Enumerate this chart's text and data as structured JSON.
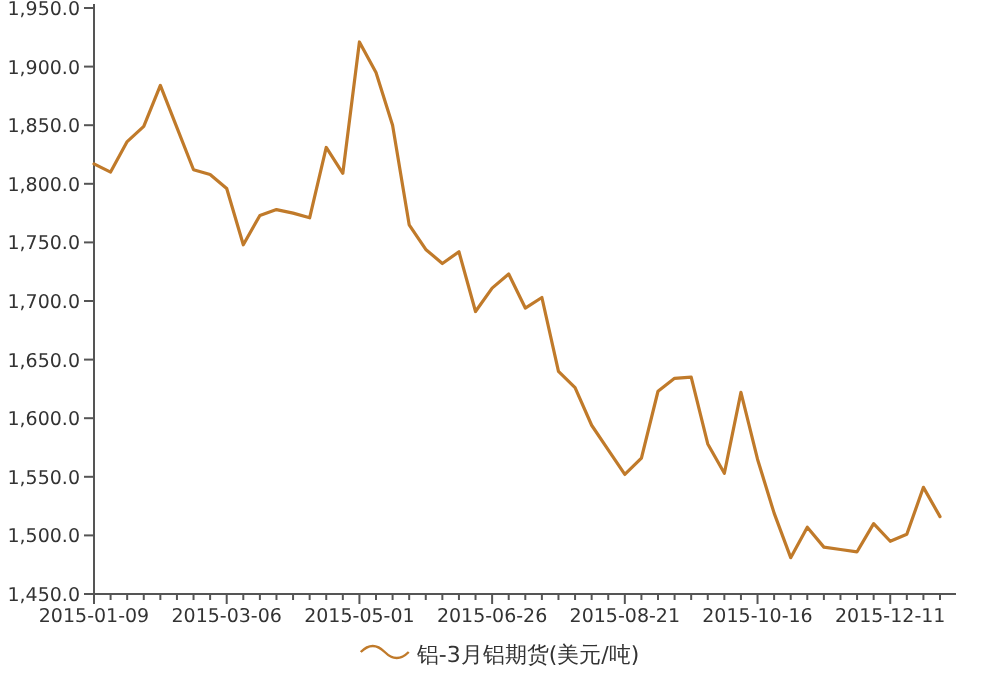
{
  "chart_data": {
    "type": "line",
    "categories": [
      "2015-01-09",
      null,
      null,
      null,
      null,
      null,
      null,
      null,
      "2015-03-06",
      null,
      null,
      null,
      null,
      null,
      null,
      null,
      "2015-05-01",
      null,
      null,
      null,
      null,
      null,
      null,
      null,
      "2015-06-26",
      null,
      null,
      null,
      null,
      null,
      null,
      null,
      "2015-08-21",
      null,
      null,
      null,
      null,
      null,
      null,
      null,
      "2015-10-16",
      null,
      null,
      null,
      null,
      null,
      null,
      null,
      "2015-12-11",
      null,
      null,
      null
    ],
    "series": [
      {
        "name": "铝-3月铝期货(美元/吨)",
        "color": "#c07a2a",
        "values": [
          1817,
          1810,
          1836,
          1849,
          1884,
          1848,
          1812,
          1808,
          1796,
          1748,
          1773,
          1778,
          1775,
          1771,
          1831,
          1809,
          1921,
          1895,
          1850,
          1765,
          1744,
          1732,
          1742,
          1691,
          1711,
          1723,
          1694,
          1703,
          1640,
          1626,
          1594,
          1573,
          1552,
          1566,
          1623,
          1634,
          1635,
          1578,
          1553,
          1622,
          1565,
          1519,
          1481,
          1507,
          1490,
          1488,
          1486,
          1510,
          1495,
          1501,
          1541,
          1516
        ]
      }
    ],
    "ylim": [
      1450,
      1950
    ],
    "yticks": [
      {
        "value": 1450,
        "label": "1,450.0"
      },
      {
        "value": 1500,
        "label": "1,500.0"
      },
      {
        "value": 1550,
        "label": "1,550.0"
      },
      {
        "value": 1600,
        "label": "1,600.0"
      },
      {
        "value": 1650,
        "label": "1,650.0"
      },
      {
        "value": 1700,
        "label": "1,700.0"
      },
      {
        "value": 1750,
        "label": "1,750.0"
      },
      {
        "value": 1800,
        "label": "1,800.0"
      },
      {
        "value": 1850,
        "label": "1,850.0"
      },
      {
        "value": 1900,
        "label": "1,900.0"
      },
      {
        "value": 1950,
        "label": "1,950.0"
      }
    ],
    "grid": false,
    "legend": "bottom",
    "marker": "none",
    "line_style": "solid"
  }
}
